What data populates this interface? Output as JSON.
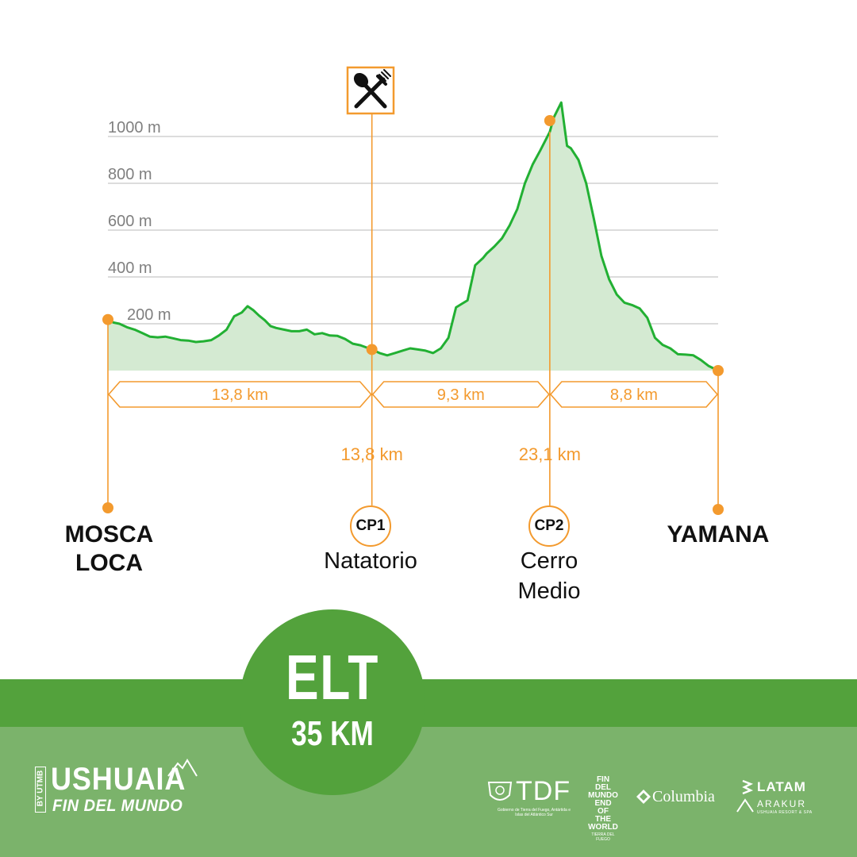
{
  "chart_data": {
    "type": "area",
    "xlabel": "",
    "ylabel": "",
    "ylim": [
      0,
      1180
    ],
    "xlim": [
      0,
      31.9
    ],
    "y_ticks": [
      {
        "value": 200,
        "label": "200 m"
      },
      {
        "value": 400,
        "label": "400 m"
      },
      {
        "value": 600,
        "label": "600 m"
      },
      {
        "value": 800,
        "label": "800 m"
      },
      {
        "value": 1000,
        "label": "1000 m"
      }
    ],
    "grid": "horizontal",
    "series": [
      {
        "color": "#22b033",
        "fill": "#d4ead2",
        "x": [
          0,
          0.3,
          0.6,
          1.0,
          1.4,
          1.8,
          2.2,
          2.6,
          3.0,
          3.4,
          3.8,
          4.2,
          4.6,
          5.0,
          5.4,
          5.8,
          6.2,
          6.6,
          7.0,
          7.3,
          7.6,
          7.9,
          8.2,
          8.5,
          8.8,
          9.2,
          9.6,
          10.0,
          10.4,
          10.8,
          11.2,
          11.6,
          12.0,
          12.4,
          12.8,
          13.2,
          13.8,
          14.2,
          14.6,
          15.0,
          15.4,
          15.8,
          16.2,
          16.6,
          17.0,
          17.4,
          17.8,
          18.2,
          18.5,
          18.8,
          19.2,
          19.6,
          19.8,
          20.2,
          20.6,
          21.0,
          21.4,
          21.8,
          22.2,
          22.6,
          23.1,
          23.3,
          23.7,
          24.0,
          24.2,
          24.6,
          25.0,
          25.4,
          25.8,
          26.2,
          26.6,
          27.0,
          27.4,
          27.8,
          28.2,
          28.6,
          29.0,
          29.4,
          29.8,
          30.2,
          30.6,
          31.0,
          31.4,
          31.9
        ],
        "y": [
          218,
          205,
          200,
          185,
          175,
          160,
          145,
          142,
          145,
          138,
          130,
          128,
          122,
          125,
          130,
          150,
          175,
          232,
          248,
          275,
          258,
          235,
          215,
          190,
          182,
          175,
          168,
          168,
          175,
          155,
          160,
          150,
          148,
          135,
          115,
          108,
          90,
          75,
          65,
          75,
          85,
          95,
          90,
          85,
          75,
          95,
          140,
          270,
          285,
          300,
          450,
          480,
          500,
          530,
          565,
          620,
          690,
          800,
          880,
          940,
          1020,
          1080,
          1145,
          960,
          950,
          900,
          800,
          650,
          490,
          390,
          325,
          290,
          280,
          265,
          225,
          140,
          110,
          95,
          70,
          68,
          65,
          45,
          20,
          0
        ]
      }
    ],
    "segments": [
      {
        "from_km": 0,
        "to_km": 13.8,
        "label": "13,8 km"
      },
      {
        "from_km": 13.8,
        "to_km": 23.1,
        "label": "9,3 km"
      },
      {
        "from_km": 23.1,
        "to_km": 31.9,
        "label": "8,8 km"
      }
    ],
    "checkpoint_km_labels": [
      {
        "km": 13.8,
        "label": "13,8 km"
      },
      {
        "km": 23.1,
        "label": "23,1 km"
      }
    ],
    "aid_station": {
      "km": 13.8,
      "icon": "fork-spoon-icon"
    }
  },
  "places": {
    "start": {
      "line1": "MOSCA",
      "line2": "LOCA"
    },
    "cp1": {
      "badge": "CP1",
      "name": "Natatorio"
    },
    "cp2": {
      "badge": "CP2",
      "line1": "Cerro",
      "line2": "Medio"
    },
    "finish": {
      "name": "YAMANA"
    }
  },
  "race": {
    "name": "ELT",
    "distance": "35 KM"
  },
  "footer": {
    "brand_main": "USHUAIA",
    "brand_by": "BY UTMB",
    "brand_sub": "FIN DEL MUNDO",
    "sponsors": [
      {
        "name": "TDF",
        "caption": "Gobierno de Tierra del Fuego, Antártida e Islas del Atlántico Sur"
      },
      {
        "name": "FIN DEL MUNDO END OF THE WORLD",
        "caption": "TIERRA DEL FUEGO"
      },
      {
        "name": "Columbia"
      },
      {
        "name": "LATAM"
      },
      {
        "name": "ARAKUR",
        "caption": "USHUAIA RESORT & SPA"
      }
    ]
  },
  "colors": {
    "profile_line": "#22b033",
    "profile_fill": "#d4ead2",
    "accent_orange": "#f39a2e",
    "band_dark": "#53a23c",
    "band_light": "#7bb36b"
  }
}
